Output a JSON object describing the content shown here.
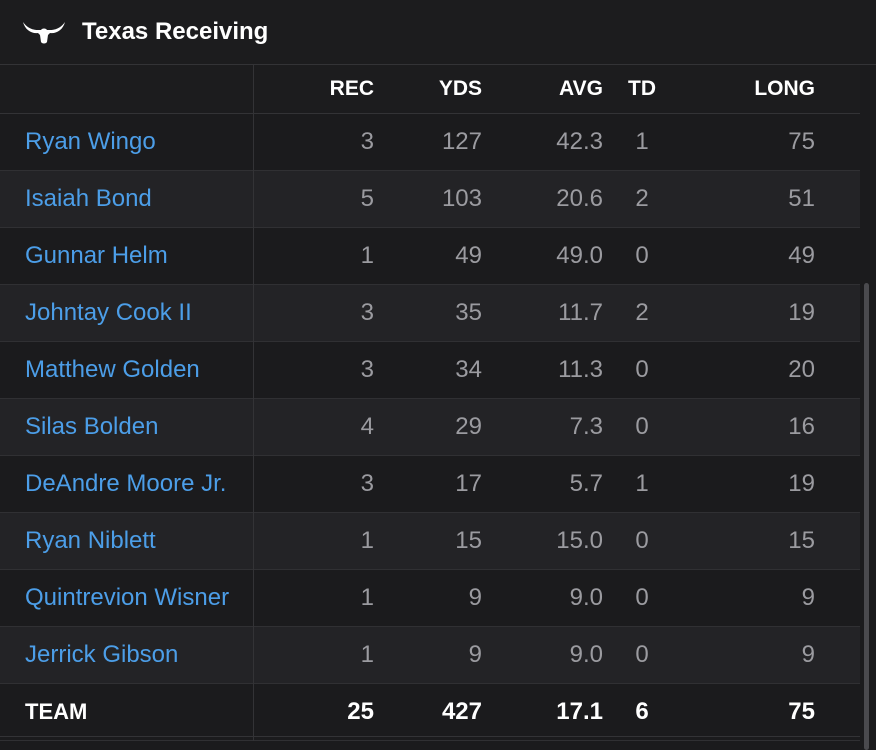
{
  "header": {
    "title": "Texas Receiving",
    "logo_icon": "longhorn-icon"
  },
  "columns": {
    "rec": "REC",
    "yds": "YDS",
    "avg": "AVG",
    "td": "TD",
    "long": "LONG"
  },
  "rows": [
    {
      "name": "Ryan Wingo",
      "rec": "3",
      "yds": "127",
      "avg": "42.3",
      "td": "1",
      "long": "75"
    },
    {
      "name": "Isaiah Bond",
      "rec": "5",
      "yds": "103",
      "avg": "20.6",
      "td": "2",
      "long": "51"
    },
    {
      "name": "Gunnar Helm",
      "rec": "1",
      "yds": "49",
      "avg": "49.0",
      "td": "0",
      "long": "49"
    },
    {
      "name": "Johntay Cook II",
      "rec": "3",
      "yds": "35",
      "avg": "11.7",
      "td": "2",
      "long": "19"
    },
    {
      "name": "Matthew Golden",
      "rec": "3",
      "yds": "34",
      "avg": "11.3",
      "td": "0",
      "long": "20"
    },
    {
      "name": "Silas Bolden",
      "rec": "4",
      "yds": "29",
      "avg": "7.3",
      "td": "0",
      "long": "16"
    },
    {
      "name": "DeAndre Moore Jr.",
      "rec": "3",
      "yds": "17",
      "avg": "5.7",
      "td": "1",
      "long": "19"
    },
    {
      "name": "Ryan Niblett",
      "rec": "1",
      "yds": "15",
      "avg": "15.0",
      "td": "0",
      "long": "15"
    },
    {
      "name": "Quintrevion Wisner",
      "rec": "1",
      "yds": "9",
      "avg": "9.0",
      "td": "0",
      "long": "9"
    },
    {
      "name": "Jerrick Gibson",
      "rec": "1",
      "yds": "9",
      "avg": "9.0",
      "td": "0",
      "long": "9"
    }
  ],
  "team": {
    "name": "TEAM",
    "rec": "25",
    "yds": "427",
    "avg": "17.1",
    "td": "6",
    "long": "75"
  },
  "colors": {
    "link": "#4c9ee8",
    "background": "#1b1b1d",
    "row_alt": "#232326"
  }
}
